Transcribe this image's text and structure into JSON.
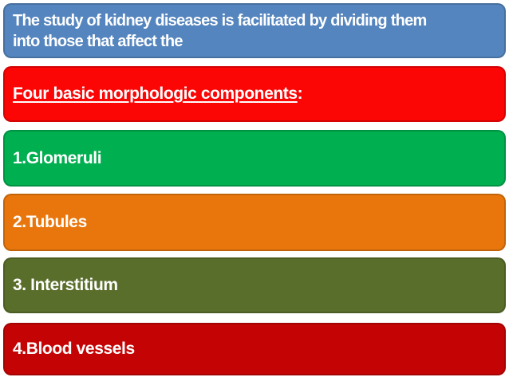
{
  "slide": {
    "background": "#FFFFFF",
    "text_color": "#FFFFFF",
    "banners": [
      {
        "id": "intro",
        "color": "#5585BE",
        "lines": [
          "The study of kidney diseases is facilitated by dividing them",
          "into those that affect the"
        ]
      },
      {
        "id": "heading",
        "color": "#FB0505",
        "label_underlined": "Four basic morphologic components",
        "label_suffix": ":"
      },
      {
        "id": "glomeruli",
        "color": "#00AF50",
        "label": "1.Glomeruli"
      },
      {
        "id": "tubules",
        "color": "#E8760D",
        "label": "2.Tubules"
      },
      {
        "id": "interstitium",
        "color": "#5A6E2B",
        "label": "3. Interstitium"
      },
      {
        "id": "blood-vessels",
        "color": "#C40404",
        "label": "4.Blood vessels"
      }
    ]
  }
}
